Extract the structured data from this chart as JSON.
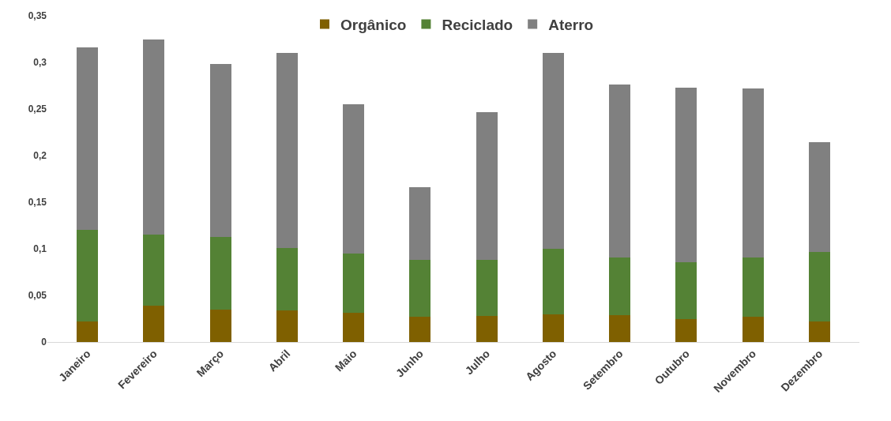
{
  "chart_data": {
    "type": "bar",
    "stacked": true,
    "legend": "top",
    "grid": false,
    "categories": [
      "Janeiro",
      "Fevereiro",
      "Março",
      "Abril",
      "Maio",
      "Junho",
      "Julho",
      "Agosto",
      "Setembro",
      "Outubro",
      "Novembro",
      "Dezembro"
    ],
    "series": [
      {
        "name": "Orgânico",
        "color": "#7f6000",
        "values": [
          0.022,
          0.039,
          0.035,
          0.034,
          0.031,
          0.027,
          0.028,
          0.03,
          0.029,
          0.025,
          0.027,
          0.022
        ]
      },
      {
        "name": "Reciclado",
        "color": "#548235",
        "values": [
          0.098,
          0.076,
          0.078,
          0.067,
          0.064,
          0.061,
          0.06,
          0.07,
          0.062,
          0.061,
          0.064,
          0.075
        ]
      },
      {
        "name": "Aterro",
        "color": "#808080",
        "values": [
          0.196,
          0.21,
          0.185,
          0.209,
          0.16,
          0.078,
          0.159,
          0.21,
          0.185,
          0.187,
          0.181,
          0.117
        ]
      }
    ],
    "ylim": [
      0,
      0.35
    ],
    "yticks": [
      {
        "value": 0,
        "label": "0"
      },
      {
        "value": 0.05,
        "label": "0,05"
      },
      {
        "value": 0.1,
        "label": "0,1"
      },
      {
        "value": 0.15,
        "label": "0,15"
      },
      {
        "value": 0.2,
        "label": "0,2"
      },
      {
        "value": 0.25,
        "label": "0,25"
      },
      {
        "value": 0.3,
        "label": "0,3"
      },
      {
        "value": 0.35,
        "label": "0,35"
      }
    ]
  }
}
